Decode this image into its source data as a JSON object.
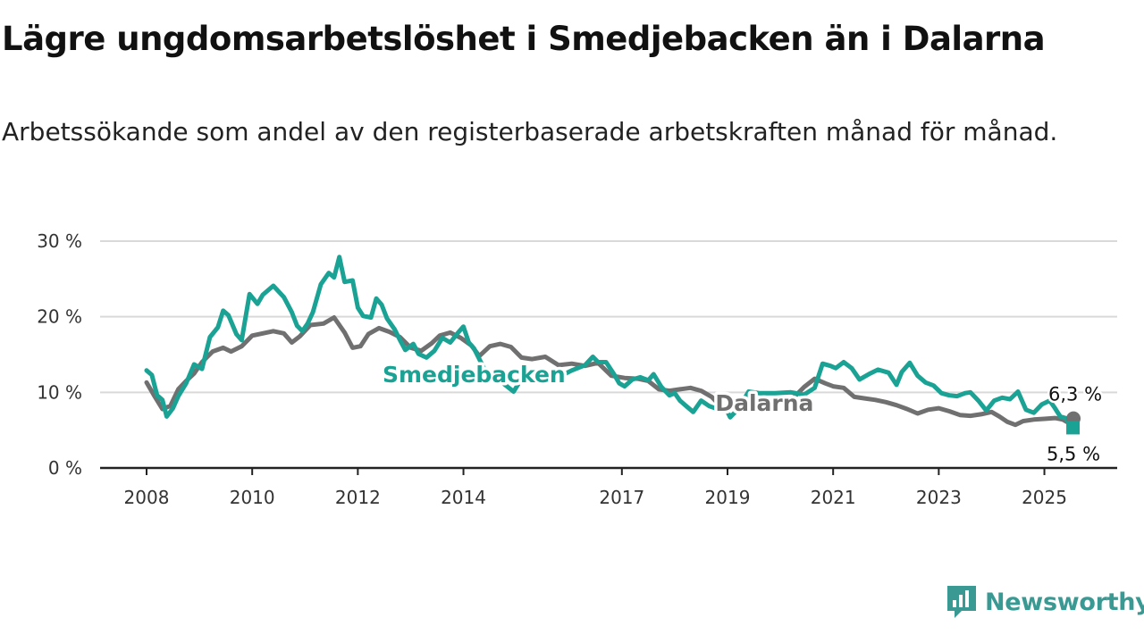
{
  "title": "Lägre ungdomsarbetslöshet i Smedjebacken än i Dalarna",
  "subtitle": "Arbetssökande som andel av den registerbaserade arbetskraften månad för månad.",
  "brand": {
    "name": "Newsworthy",
    "color": "#3a9a93",
    "icon": "bar-chart-speech-icon"
  },
  "chart_data": {
    "type": "line",
    "title": "Lägre ungdomsarbetslöshet i Smedjebacken än i Dalarna",
    "xlabel": "",
    "ylabel": "",
    "ylim": [
      0,
      30
    ],
    "xlim": [
      2008,
      2025.6
    ],
    "y_ticks": [
      0,
      10,
      20,
      30
    ],
    "y_tick_labels": [
      "0 %",
      "10 %",
      "20 %",
      "30 %"
    ],
    "x_ticks": [
      2008,
      2010,
      2012,
      2014,
      2017,
      2019,
      2021,
      2023,
      2025
    ],
    "x_tick_labels": [
      "2008",
      "2010",
      "2012",
      "2014",
      "2017",
      "2019",
      "2021",
      "2023",
      "2025"
    ],
    "grid": true,
    "series": [
      {
        "name": "Dalarna",
        "color": "#707070",
        "end_label": "6,3 %",
        "points": [
          [
            2008.0,
            11.3
          ],
          [
            2008.15,
            9.5
          ],
          [
            2008.3,
            7.8
          ],
          [
            2008.45,
            8.2
          ],
          [
            2008.6,
            10.4
          ],
          [
            2008.75,
            11.5
          ],
          [
            2008.9,
            12.5
          ],
          [
            2009.05,
            14.0
          ],
          [
            2009.25,
            15.4
          ],
          [
            2009.45,
            15.9
          ],
          [
            2009.6,
            15.4
          ],
          [
            2009.8,
            16.1
          ],
          [
            2010.0,
            17.5
          ],
          [
            2010.2,
            17.8
          ],
          [
            2010.4,
            18.1
          ],
          [
            2010.6,
            17.8
          ],
          [
            2010.75,
            16.6
          ],
          [
            2010.9,
            17.4
          ],
          [
            2011.1,
            18.9
          ],
          [
            2011.35,
            19.1
          ],
          [
            2011.55,
            19.9
          ],
          [
            2011.75,
            17.9
          ],
          [
            2011.9,
            15.9
          ],
          [
            2012.05,
            16.1
          ],
          [
            2012.2,
            17.7
          ],
          [
            2012.4,
            18.5
          ],
          [
            2012.6,
            18.0
          ],
          [
            2012.8,
            17.3
          ],
          [
            2013.0,
            15.9
          ],
          [
            2013.2,
            15.5
          ],
          [
            2013.4,
            16.5
          ],
          [
            2013.55,
            17.5
          ],
          [
            2013.75,
            17.9
          ],
          [
            2013.95,
            17.2
          ],
          [
            2014.15,
            16.2
          ],
          [
            2014.3,
            14.8
          ],
          [
            2014.5,
            16.1
          ],
          [
            2014.7,
            16.4
          ],
          [
            2014.9,
            16.0
          ],
          [
            2015.1,
            14.6
          ],
          [
            2015.3,
            14.4
          ],
          [
            2015.55,
            14.7
          ],
          [
            2015.8,
            13.6
          ],
          [
            2016.05,
            13.8
          ],
          [
            2016.3,
            13.5
          ],
          [
            2016.55,
            13.9
          ],
          [
            2016.8,
            12.2
          ],
          [
            2017.05,
            11.9
          ],
          [
            2017.3,
            11.8
          ],
          [
            2017.5,
            11.5
          ],
          [
            2017.7,
            10.4
          ],
          [
            2017.9,
            10.2
          ],
          [
            2018.1,
            10.4
          ],
          [
            2018.3,
            10.6
          ],
          [
            2018.5,
            10.2
          ],
          [
            2018.7,
            9.4
          ],
          [
            2018.85,
            8.3
          ],
          [
            2019.05,
            8.0
          ],
          [
            2019.25,
            7.8
          ],
          [
            2019.45,
            7.5
          ],
          [
            2019.65,
            8.0
          ],
          [
            2019.85,
            8.5
          ],
          [
            2020.05,
            8.9
          ],
          [
            2020.25,
            9.3
          ],
          [
            2020.45,
            10.7
          ],
          [
            2020.65,
            11.8
          ],
          [
            2020.85,
            11.2
          ],
          [
            2021.0,
            10.8
          ],
          [
            2021.2,
            10.6
          ],
          [
            2021.4,
            9.4
          ],
          [
            2021.6,
            9.2
          ],
          [
            2021.8,
            9.0
          ],
          [
            2022.0,
            8.7
          ],
          [
            2022.2,
            8.3
          ],
          [
            2022.4,
            7.8
          ],
          [
            2022.6,
            7.2
          ],
          [
            2022.8,
            7.7
          ],
          [
            2023.0,
            7.9
          ],
          [
            2023.2,
            7.5
          ],
          [
            2023.4,
            7.0
          ],
          [
            2023.6,
            6.9
          ],
          [
            2023.8,
            7.1
          ],
          [
            2024.0,
            7.4
          ],
          [
            2024.15,
            6.8
          ],
          [
            2024.3,
            6.1
          ],
          [
            2024.45,
            5.7
          ],
          [
            2024.6,
            6.2
          ],
          [
            2024.8,
            6.4
          ],
          [
            2025.0,
            6.5
          ],
          [
            2025.2,
            6.6
          ],
          [
            2025.35,
            6.4
          ],
          [
            2025.45,
            6.0
          ],
          [
            2025.55,
            6.3
          ]
        ]
      },
      {
        "name": "Smedjebacken",
        "color": "#1aa294",
        "end_label": "5,5 %",
        "points": [
          [
            2008.0,
            12.9
          ],
          [
            2008.1,
            12.3
          ],
          [
            2008.2,
            9.6
          ],
          [
            2008.3,
            9.0
          ],
          [
            2008.38,
            6.8
          ],
          [
            2008.5,
            7.9
          ],
          [
            2008.6,
            9.5
          ],
          [
            2008.75,
            11.2
          ],
          [
            2008.9,
            13.7
          ],
          [
            2009.05,
            13.1
          ],
          [
            2009.2,
            17.3
          ],
          [
            2009.35,
            18.6
          ],
          [
            2009.45,
            20.8
          ],
          [
            2009.55,
            20.2
          ],
          [
            2009.7,
            17.7
          ],
          [
            2009.8,
            16.9
          ],
          [
            2009.95,
            23.0
          ],
          [
            2010.1,
            21.7
          ],
          [
            2010.2,
            22.9
          ],
          [
            2010.4,
            24.1
          ],
          [
            2010.6,
            22.6
          ],
          [
            2010.75,
            20.6
          ],
          [
            2010.85,
            18.8
          ],
          [
            2010.95,
            18.1
          ],
          [
            2011.05,
            19.1
          ],
          [
            2011.15,
            20.6
          ],
          [
            2011.3,
            24.3
          ],
          [
            2011.45,
            25.8
          ],
          [
            2011.55,
            25.2
          ],
          [
            2011.65,
            27.9
          ],
          [
            2011.75,
            24.6
          ],
          [
            2011.9,
            24.8
          ],
          [
            2012.0,
            21.2
          ],
          [
            2012.1,
            20.1
          ],
          [
            2012.25,
            19.9
          ],
          [
            2012.35,
            22.4
          ],
          [
            2012.45,
            21.6
          ],
          [
            2012.55,
            19.8
          ],
          [
            2012.7,
            18.3
          ],
          [
            2012.8,
            16.9
          ],
          [
            2012.9,
            15.6
          ],
          [
            2013.05,
            16.4
          ],
          [
            2013.15,
            15.1
          ],
          [
            2013.3,
            14.6
          ],
          [
            2013.45,
            15.5
          ],
          [
            2013.6,
            17.2
          ],
          [
            2013.75,
            16.6
          ],
          [
            2013.9,
            17.9
          ],
          [
            2014.0,
            18.7
          ],
          [
            2014.1,
            16.6
          ],
          [
            2014.2,
            15.8
          ],
          [
            2014.4,
            13.0
          ],
          [
            2014.55,
            12.0
          ],
          [
            2014.75,
            11.2
          ],
          [
            2014.95,
            10.1
          ],
          [
            2015.1,
            11.8
          ],
          [
            2015.3,
            12.9
          ],
          [
            2015.6,
            12.7
          ],
          [
            2015.85,
            12.2
          ],
          [
            2016.05,
            12.9
          ],
          [
            2016.3,
            13.6
          ],
          [
            2016.45,
            14.7
          ],
          [
            2016.55,
            14.0
          ],
          [
            2016.7,
            14.0
          ],
          [
            2016.85,
            12.4
          ],
          [
            2016.95,
            11.2
          ],
          [
            2017.05,
            10.8
          ],
          [
            2017.2,
            11.7
          ],
          [
            2017.35,
            12.0
          ],
          [
            2017.5,
            11.6
          ],
          [
            2017.6,
            12.4
          ],
          [
            2017.75,
            10.7
          ],
          [
            2017.9,
            9.6
          ],
          [
            2018.0,
            9.9
          ],
          [
            2018.1,
            8.9
          ],
          [
            2018.25,
            8.0
          ],
          [
            2018.35,
            7.4
          ],
          [
            2018.5,
            8.9
          ],
          [
            2018.65,
            8.2
          ],
          [
            2018.85,
            7.7
          ],
          [
            2018.95,
            8.1
          ],
          [
            2019.05,
            6.7
          ],
          [
            2019.2,
            7.8
          ],
          [
            2019.4,
            10.1
          ],
          [
            2019.6,
            9.9
          ],
          [
            2019.9,
            9.9
          ],
          [
            2020.2,
            10.0
          ],
          [
            2020.45,
            9.7
          ],
          [
            2020.65,
            10.6
          ],
          [
            2020.8,
            13.8
          ],
          [
            2020.95,
            13.5
          ],
          [
            2021.05,
            13.2
          ],
          [
            2021.2,
            14.0
          ],
          [
            2021.35,
            13.2
          ],
          [
            2021.5,
            11.7
          ],
          [
            2021.7,
            12.5
          ],
          [
            2021.85,
            13.0
          ],
          [
            2022.05,
            12.6
          ],
          [
            2022.2,
            11.0
          ],
          [
            2022.3,
            12.7
          ],
          [
            2022.45,
            13.9
          ],
          [
            2022.6,
            12.2
          ],
          [
            2022.75,
            11.3
          ],
          [
            2022.9,
            10.9
          ],
          [
            2023.05,
            9.9
          ],
          [
            2023.2,
            9.6
          ],
          [
            2023.35,
            9.5
          ],
          [
            2023.5,
            9.9
          ],
          [
            2023.6,
            10.0
          ],
          [
            2023.75,
            8.9
          ],
          [
            2023.9,
            7.6
          ],
          [
            2024.05,
            8.9
          ],
          [
            2024.2,
            9.3
          ],
          [
            2024.35,
            9.1
          ],
          [
            2024.5,
            10.1
          ],
          [
            2024.65,
            7.7
          ],
          [
            2024.8,
            7.3
          ],
          [
            2024.95,
            8.4
          ],
          [
            2025.1,
            8.9
          ],
          [
            2025.2,
            7.9
          ],
          [
            2025.3,
            6.8
          ],
          [
            2025.4,
            6.6
          ],
          [
            2025.5,
            5.6
          ],
          [
            2025.55,
            5.5
          ]
        ]
      }
    ],
    "series_labels": [
      {
        "name": "Smedjebacken",
        "x": 2014.2,
        "y": 12.4,
        "anchor": "middle"
      },
      {
        "name": "Dalarna",
        "x": 2019.7,
        "y": 8.6,
        "anchor": "middle"
      }
    ]
  }
}
